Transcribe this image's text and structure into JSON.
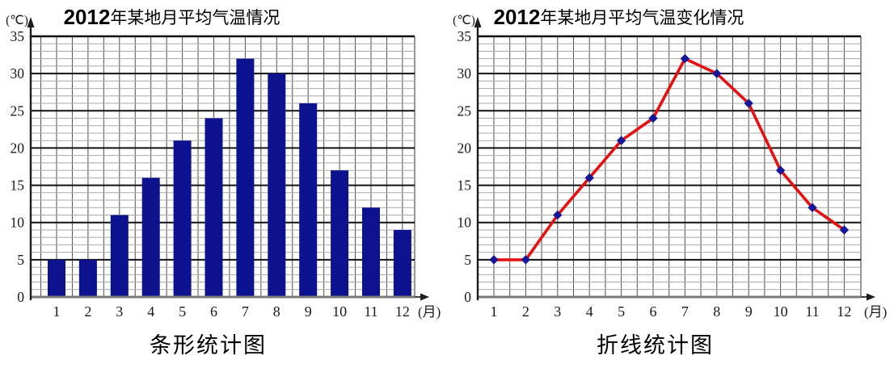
{
  "chart_data": [
    {
      "type": "bar",
      "title": "2012年某地月平均气温情况",
      "title_prefix": "2012",
      "title_rest": "年某地月平均气温情况",
      "caption": "条形统计图",
      "ylabel": "(℃)",
      "xlabel": "(月)",
      "categories": [
        1,
        2,
        3,
        4,
        5,
        6,
        7,
        8,
        9,
        10,
        11,
        12
      ],
      "values": [
        5,
        5,
        11,
        16,
        21,
        24,
        32,
        30,
        26,
        17,
        12,
        9
      ],
      "ylim": [
        0,
        35
      ],
      "ytick_step": 5,
      "minor_step": 1,
      "grid": true,
      "legend": "none",
      "bar_color": "#0d128f"
    },
    {
      "type": "line",
      "title": "2012年某地月平均气温变化情况",
      "title_prefix": "2012",
      "title_rest": "年某地月平均气温变化情况",
      "caption": "折线统计图",
      "ylabel": "(℃)",
      "xlabel": "(月)",
      "categories": [
        1,
        2,
        3,
        4,
        5,
        6,
        7,
        8,
        9,
        10,
        11,
        12
      ],
      "values": [
        5,
        5,
        11,
        16,
        21,
        24,
        32,
        30,
        26,
        17,
        12,
        9
      ],
      "ylim": [
        0,
        35
      ],
      "ytick_step": 5,
      "minor_step": 1,
      "grid": true,
      "legend": "none",
      "line_color": "#e51010",
      "marker": "diamond",
      "marker_color": "#15179a"
    }
  ],
  "colors": {
    "grid_minor": "#a9a9a9",
    "grid_vertical": "#4f4f4f",
    "grid_major": "#111111",
    "axis_bottom": "#7a7a7a",
    "axis": "#1d1d1d",
    "text": "#1a1a1a"
  }
}
